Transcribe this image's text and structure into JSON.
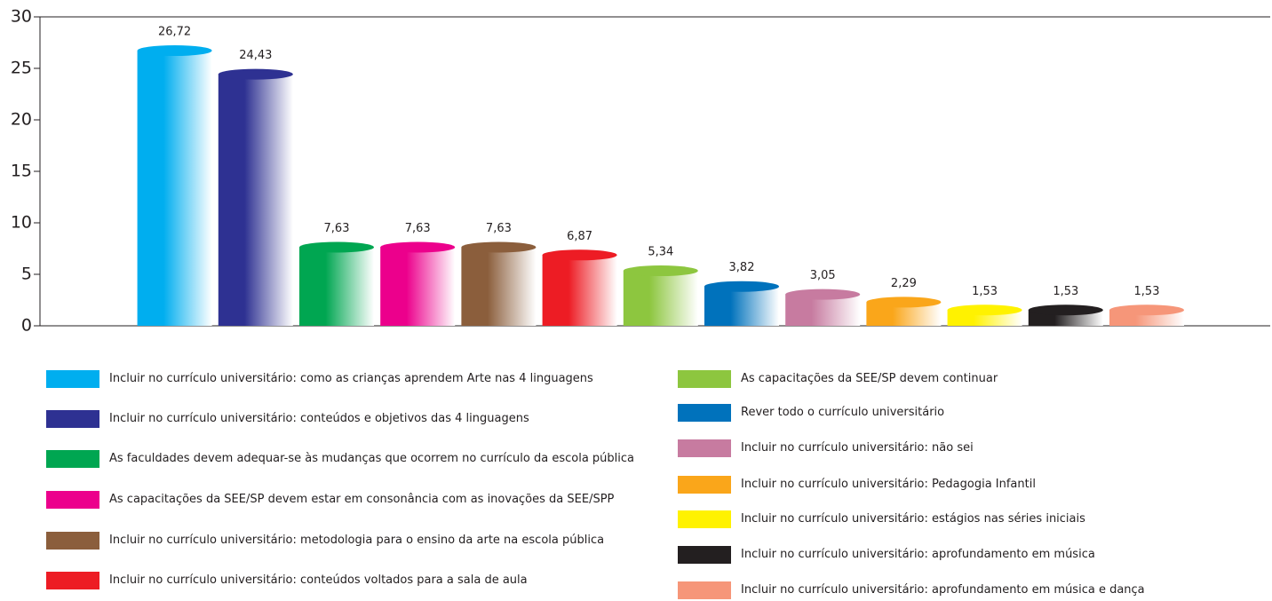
{
  "chart_data": {
    "type": "bar",
    "categories": [
      "Incluir no currículo universitário: como as crianças aprendem Arte nas 4 linguagens",
      "Incluir no currículo universitário: conteúdos e objetivos das 4 linguagens",
      "As faculdades devem adequar-se às mudanças que ocorrem no currículo da escola pública",
      "As capacitações da SEE/SP devem estar em consonância com as inovações da SEE/SPP",
      "Incluir no currículo universitário: metodologia para o ensino da arte na escola pública",
      "Incluir no currículo universitário: conteúdos voltados para a sala de aula",
      "As capacitações da SEE/SP devem continuar",
      "Rever todo o currículo universitário",
      "Incluir no currículo universitário: não sei",
      "Incluir no currículo universitário: Pedagogia Infantil",
      "Incluir no currículo universitário: estágios nas séries iniciais",
      "Incluir no currículo universitário: aprofundamento em música",
      "Incluir no currículo universitário: aprofundamento em música e dança"
    ],
    "values": [
      26.72,
      24.43,
      7.63,
      7.63,
      7.63,
      6.87,
      5.34,
      3.82,
      3.05,
      2.29,
      1.53,
      1.53,
      1.53
    ],
    "value_labels": [
      "26,72",
      "24,43",
      "7,63",
      "7,63",
      "7,63",
      "6,87",
      "5,34",
      "3,82",
      "3,05",
      "2,29",
      "1,53",
      "1,53",
      "1,53"
    ],
    "colors": [
      "#00aeef",
      "#2e3192",
      "#00a651",
      "#ec008c",
      "#8b5e3c",
      "#ed1c24",
      "#8dc63f",
      "#0072bc",
      "#c77ba0",
      "#faa61a",
      "#fff200",
      "#231f20",
      "#f69679"
    ],
    "ylim": [
      0,
      30
    ],
    "yticks": [
      0,
      5,
      10,
      15,
      20,
      25,
      30
    ],
    "grid": false
  }
}
